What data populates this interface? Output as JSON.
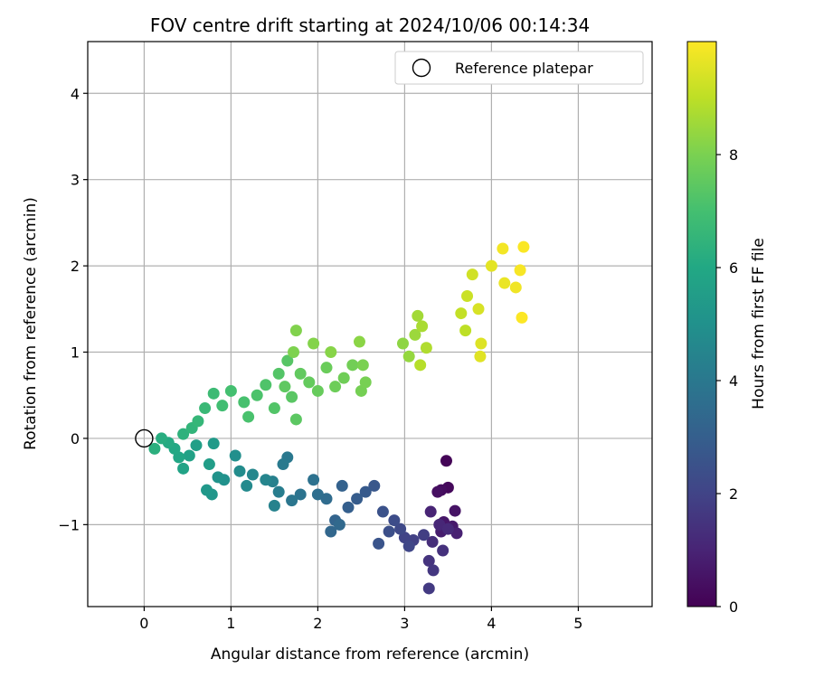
{
  "chart_data": {
    "type": "scatter",
    "title": "FOV centre drift starting at 2024/10/06 00:14:34",
    "xlabel": "Angular distance from reference (arcmin)",
    "ylabel": "Rotation from reference (arcmin)",
    "xlim": [
      -0.65,
      5.85
    ],
    "ylim": [
      -1.95,
      4.6
    ],
    "xticks": [
      0,
      1,
      2,
      3,
      4,
      5
    ],
    "yticks": [
      -1,
      0,
      1,
      2,
      3,
      4
    ],
    "grid": true,
    "legend": {
      "position": "top-right",
      "entries": [
        "Reference platepar"
      ]
    },
    "reference_point": {
      "x": 0,
      "y": 0
    },
    "colorbar": {
      "label": "Hours from first FF file",
      "range": [
        0,
        10
      ],
      "ticks": [
        0,
        2,
        4,
        6,
        8
      ],
      "colormap": "viridis"
    },
    "series": [
      {
        "points": [
          [
            3.48,
            -0.26,
            0.1
          ],
          [
            3.5,
            -0.57,
            0.2
          ],
          [
            3.42,
            -0.6,
            0.3
          ],
          [
            3.38,
            -0.62,
            0.4
          ],
          [
            3.58,
            -0.84,
            0.5
          ],
          [
            3.45,
            -0.97,
            0.6
          ],
          [
            3.55,
            -1.02,
            0.7
          ],
          [
            3.42,
            -1.08,
            0.8
          ],
          [
            3.6,
            -1.1,
            0.9
          ],
          [
            3.3,
            -0.85,
            1.0
          ],
          [
            3.4,
            -1.0,
            1.1
          ],
          [
            3.5,
            -1.05,
            1.2
          ],
          [
            3.32,
            -1.2,
            1.3
          ],
          [
            3.44,
            -1.3,
            1.4
          ],
          [
            3.28,
            -1.42,
            1.5
          ],
          [
            3.33,
            -1.53,
            1.6
          ],
          [
            3.28,
            -1.74,
            1.7
          ],
          [
            3.22,
            -1.12,
            1.8
          ],
          [
            3.1,
            -1.18,
            1.9
          ],
          [
            3.0,
            -1.15,
            2.0
          ],
          [
            3.05,
            -1.25,
            2.1
          ],
          [
            2.95,
            -1.05,
            2.2
          ],
          [
            2.88,
            -0.95,
            2.3
          ],
          [
            2.82,
            -1.08,
            2.4
          ],
          [
            2.75,
            -0.85,
            2.5
          ],
          [
            2.7,
            -1.22,
            2.6
          ],
          [
            2.65,
            -0.55,
            2.7
          ],
          [
            2.55,
            -0.62,
            2.8
          ],
          [
            2.45,
            -0.7,
            2.9
          ],
          [
            2.35,
            -0.8,
            3.0
          ],
          [
            2.28,
            -0.55,
            3.1
          ],
          [
            2.2,
            -0.95,
            3.2
          ],
          [
            2.15,
            -1.08,
            3.3
          ],
          [
            2.25,
            -1.0,
            3.4
          ],
          [
            2.1,
            -0.7,
            3.5
          ],
          [
            2.0,
            -0.65,
            3.6
          ],
          [
            1.95,
            -0.48,
            3.7
          ],
          [
            1.8,
            -0.65,
            3.8
          ],
          [
            1.7,
            -0.72,
            3.9
          ],
          [
            1.65,
            -0.22,
            4.0
          ],
          [
            1.6,
            -0.3,
            4.1
          ],
          [
            1.55,
            -0.62,
            4.2
          ],
          [
            1.48,
            -0.5,
            4.3
          ],
          [
            1.5,
            -0.78,
            4.4
          ],
          [
            1.4,
            -0.48,
            4.5
          ],
          [
            1.25,
            -0.42,
            4.6
          ],
          [
            1.18,
            -0.55,
            4.7
          ],
          [
            1.1,
            -0.38,
            4.8
          ],
          [
            1.05,
            -0.2,
            4.9
          ],
          [
            0.92,
            -0.48,
            5.0
          ],
          [
            0.85,
            -0.45,
            5.1
          ],
          [
            0.78,
            -0.65,
            5.2
          ],
          [
            0.72,
            -0.6,
            5.3
          ],
          [
            0.8,
            -0.06,
            5.4
          ],
          [
            0.75,
            -0.3,
            5.5
          ],
          [
            0.6,
            -0.08,
            5.6
          ],
          [
            0.52,
            -0.2,
            5.7
          ],
          [
            0.45,
            -0.35,
            5.8
          ],
          [
            0.4,
            -0.22,
            5.9
          ],
          [
            0.35,
            -0.12,
            6.0
          ],
          [
            0.28,
            -0.05,
            6.1
          ],
          [
            0.2,
            0.0,
            6.2
          ],
          [
            0.12,
            -0.12,
            6.3
          ],
          [
            0.45,
            0.05,
            6.4
          ],
          [
            0.55,
            0.12,
            6.5
          ],
          [
            0.62,
            0.2,
            6.6
          ],
          [
            0.7,
            0.35,
            6.7
          ],
          [
            0.8,
            0.52,
            6.8
          ],
          [
            0.9,
            0.38,
            6.9
          ],
          [
            1.0,
            0.55,
            7.0
          ],
          [
            1.15,
            0.42,
            7.05
          ],
          [
            1.2,
            0.25,
            7.1
          ],
          [
            1.3,
            0.5,
            7.15
          ],
          [
            1.4,
            0.62,
            7.2
          ],
          [
            1.5,
            0.35,
            7.25
          ],
          [
            1.55,
            0.75,
            7.3
          ],
          [
            1.65,
            0.9,
            7.35
          ],
          [
            1.7,
            0.48,
            7.4
          ],
          [
            1.75,
            0.22,
            7.45
          ],
          [
            1.62,
            0.6,
            7.5
          ],
          [
            1.8,
            0.75,
            7.55
          ],
          [
            1.9,
            0.65,
            7.6
          ],
          [
            2.0,
            0.55,
            7.65
          ],
          [
            2.1,
            0.82,
            7.7
          ],
          [
            2.2,
            0.6,
            7.75
          ],
          [
            2.3,
            0.7,
            7.8
          ],
          [
            2.4,
            0.85,
            7.85
          ],
          [
            2.5,
            0.55,
            7.9
          ],
          [
            2.55,
            0.65,
            7.95
          ],
          [
            2.52,
            0.85,
            8.0
          ],
          [
            1.72,
            1.0,
            8.05
          ],
          [
            1.75,
            1.25,
            8.1
          ],
          [
            1.95,
            1.1,
            8.15
          ],
          [
            2.15,
            1.0,
            8.2
          ],
          [
            2.48,
            1.12,
            8.25
          ],
          [
            2.98,
            1.1,
            8.3
          ],
          [
            3.05,
            0.95,
            8.4
          ],
          [
            3.12,
            1.2,
            8.5
          ],
          [
            3.15,
            1.42,
            8.6
          ],
          [
            3.2,
            1.3,
            8.7
          ],
          [
            3.25,
            1.05,
            8.8
          ],
          [
            3.18,
            0.85,
            8.9
          ],
          [
            3.7,
            1.25,
            9.0
          ],
          [
            3.65,
            1.45,
            9.1
          ],
          [
            3.72,
            1.65,
            9.2
          ],
          [
            3.78,
            1.9,
            9.3
          ],
          [
            3.85,
            1.5,
            9.4
          ],
          [
            3.88,
            1.1,
            9.5
          ],
          [
            3.87,
            0.95,
            9.55
          ],
          [
            4.0,
            2.0,
            9.6
          ],
          [
            4.15,
            1.8,
            9.7
          ],
          [
            4.28,
            1.75,
            9.8
          ],
          [
            4.13,
            2.2,
            9.85
          ],
          [
            4.33,
            1.95,
            9.9
          ],
          [
            4.37,
            2.22,
            9.95
          ],
          [
            4.35,
            1.4,
            9.98
          ]
        ]
      }
    ]
  }
}
